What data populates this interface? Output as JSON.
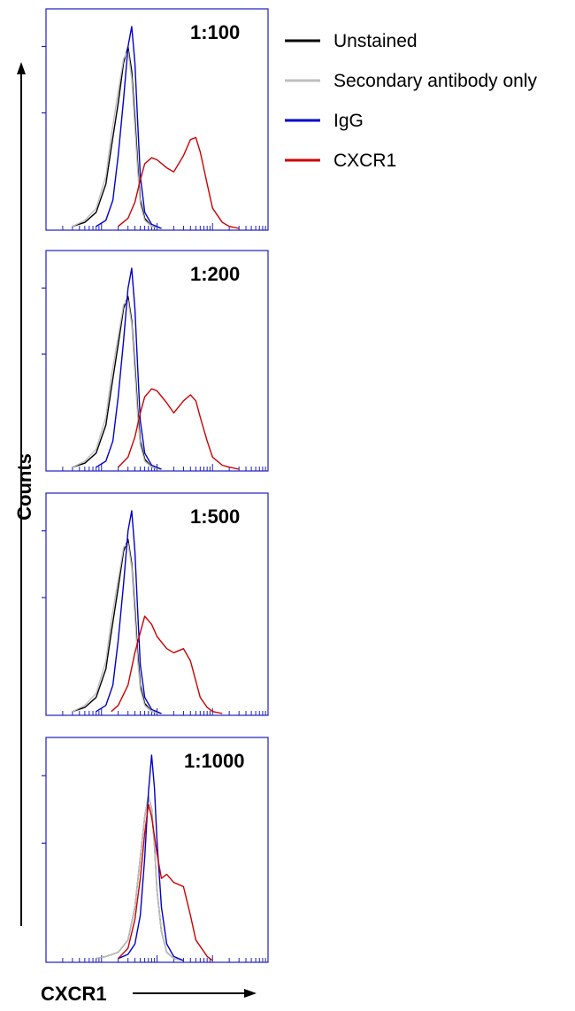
{
  "chart_data": {
    "type": "line",
    "xlabel": "CXCR1",
    "ylabel": "Counts",
    "x_scale": "log",
    "xlim": [
      1,
      10000
    ],
    "ylim": [
      0,
      100
    ],
    "legend": {
      "placement": "top-right",
      "entries": [
        {
          "name": "Unstained",
          "color": "#000000"
        },
        {
          "name": "Secondary antibody only",
          "color": "#bfbfbf"
        },
        {
          "name": "IgG",
          "color": "#0000cc"
        },
        {
          "name": "CXCR1",
          "color": "#cc0000"
        }
      ]
    },
    "panels": [
      {
        "label": "1:100",
        "series": [
          {
            "name": "Unstained",
            "color": "#000000",
            "x": [
              3,
              5,
              8,
              12,
              15,
              20,
              25,
              30,
              35,
              40,
              45,
              50,
              60,
              80,
              120
            ],
            "y": [
              1,
              3,
              8,
              22,
              40,
              62,
              82,
              90,
              78,
              55,
              32,
              14,
              5,
              1,
              0
            ]
          },
          {
            "name": "Secondary antibody only",
            "color": "#bfbfbf",
            "x": [
              3,
              5,
              8,
              12,
              15,
              20,
              25,
              30,
              35,
              40,
              45,
              50,
              60,
              80,
              120
            ],
            "y": [
              1,
              4,
              10,
              26,
              46,
              68,
              84,
              88,
              74,
              50,
              28,
              12,
              4,
              1,
              0
            ]
          },
          {
            "name": "IgG",
            "color": "#0000cc",
            "x": [
              8,
              12,
              16,
              20,
              25,
              30,
              35,
              40,
              45,
              50,
              60,
              80,
              120
            ],
            "y": [
              1,
              4,
              14,
              36,
              64,
              90,
              100,
              82,
              52,
              26,
              8,
              2,
              0
            ]
          },
          {
            "name": "CXCR1",
            "color": "#cc0000",
            "x": [
              20,
              30,
              40,
              50,
              60,
              80,
              100,
              150,
              200,
              300,
              400,
              500,
              600,
              800,
              1000,
              1500,
              2000,
              3000
            ],
            "y": [
              1,
              5,
              13,
              24,
              32,
              35,
              34,
              30,
              28,
              36,
              44,
              45,
              38,
              22,
              10,
              3,
              1,
              0
            ]
          }
        ]
      },
      {
        "label": "1:200",
        "series": [
          {
            "name": "Unstained",
            "color": "#000000",
            "x": [
              3,
              5,
              8,
              12,
              15,
              20,
              25,
              30,
              35,
              40,
              45,
              50,
              60,
              80,
              120
            ],
            "y": [
              1,
              3,
              8,
              22,
              40,
              62,
              80,
              86,
              74,
              52,
              30,
              14,
              5,
              1,
              0
            ]
          },
          {
            "name": "Secondary antibody only",
            "color": "#bfbfbf",
            "x": [
              3,
              5,
              8,
              12,
              15,
              20,
              25,
              30,
              35,
              40,
              45,
              50,
              60,
              80,
              120
            ],
            "y": [
              1,
              4,
              10,
              26,
              46,
              66,
              82,
              84,
              72,
              48,
              26,
              12,
              4,
              1,
              0
            ]
          },
          {
            "name": "IgG",
            "color": "#0000cc",
            "x": [
              8,
              12,
              16,
              20,
              25,
              30,
              35,
              40,
              45,
              50,
              60,
              80,
              120
            ],
            "y": [
              1,
              4,
              14,
              36,
              64,
              90,
              100,
              80,
              50,
              24,
              8,
              2,
              0
            ]
          },
          {
            "name": "CXCR1",
            "color": "#cc0000",
            "x": [
              20,
              30,
              40,
              50,
              60,
              80,
              100,
              150,
              200,
              300,
              400,
              500,
              600,
              800,
              1000,
              1500,
              2000,
              3000
            ],
            "y": [
              1,
              6,
              16,
              28,
              36,
              40,
              39,
              33,
              28,
              34,
              37,
              34,
              26,
              14,
              6,
              2,
              1,
              0
            ]
          }
        ]
      },
      {
        "label": "1:500",
        "series": [
          {
            "name": "Unstained",
            "color": "#000000",
            "x": [
              3,
              5,
              8,
              12,
              15,
              20,
              25,
              30,
              35,
              40,
              45,
              50,
              60,
              80,
              120
            ],
            "y": [
              1,
              3,
              8,
              22,
              40,
              62,
              80,
              86,
              74,
              52,
              30,
              14,
              5,
              1,
              0
            ]
          },
          {
            "name": "Secondary antibody only",
            "color": "#bfbfbf",
            "x": [
              3,
              5,
              8,
              12,
              15,
              20,
              25,
              30,
              35,
              40,
              45,
              50,
              60,
              80,
              120
            ],
            "y": [
              1,
              4,
              10,
              26,
              46,
              66,
              82,
              84,
              72,
              48,
              26,
              12,
              4,
              1,
              0
            ]
          },
          {
            "name": "IgG",
            "color": "#0000cc",
            "x": [
              8,
              12,
              16,
              20,
              25,
              30,
              35,
              40,
              45,
              50,
              60,
              80,
              120
            ],
            "y": [
              1,
              4,
              14,
              36,
              64,
              90,
              100,
              80,
              50,
              24,
              8,
              2,
              0
            ]
          },
          {
            "name": "CXCR1",
            "color": "#cc0000",
            "x": [
              15,
              20,
              30,
              40,
              50,
              60,
              80,
              100,
              150,
              200,
              300,
              400,
              500,
              600,
              800,
              1000,
              1500
            ],
            "y": [
              1,
              4,
              14,
              30,
              40,
              48,
              44,
              38,
              32,
              30,
              32,
              26,
              16,
              8,
              3,
              1,
              0
            ]
          }
        ]
      },
      {
        "label": "1:1000",
        "series": [
          {
            "name": "Unstained",
            "color": "#000000",
            "x": [
              8,
              12,
              20,
              30,
              40,
              50,
              60,
              70,
              80,
              90,
              100,
              120,
              150,
              200,
              300
            ],
            "y": [
              1,
              2,
              4,
              10,
              26,
              50,
              70,
              80,
              74,
              56,
              34,
              14,
              4,
              1,
              0
            ]
          },
          {
            "name": "Secondary antibody only",
            "color": "#bfbfbf",
            "x": [
              8,
              12,
              20,
              30,
              40,
              50,
              60,
              70,
              80,
              90,
              100,
              120,
              150,
              200,
              300
            ],
            "y": [
              1,
              2,
              4,
              10,
              26,
              50,
              70,
              80,
              74,
              56,
              34,
              14,
              4,
              1,
              0
            ]
          },
          {
            "name": "IgG",
            "color": "#0000cc",
            "x": [
              20,
              30,
              40,
              50,
              60,
              70,
              80,
              90,
              100,
              120,
              150,
              200,
              300
            ],
            "y": [
              1,
              3,
              8,
              22,
              50,
              82,
              100,
              84,
              58,
              26,
              8,
              2,
              0
            ]
          },
          {
            "name": "CXCR1",
            "color": "#cc0000",
            "x": [
              20,
              30,
              40,
              50,
              60,
              70,
              80,
              100,
              120,
              150,
              200,
              300,
              400,
              500,
              800,
              1000
            ],
            "y": [
              1,
              6,
              20,
              40,
              62,
              76,
              70,
              52,
              40,
              42,
              38,
              36,
              22,
              10,
              2,
              0
            ]
          }
        ]
      }
    ]
  }
}
